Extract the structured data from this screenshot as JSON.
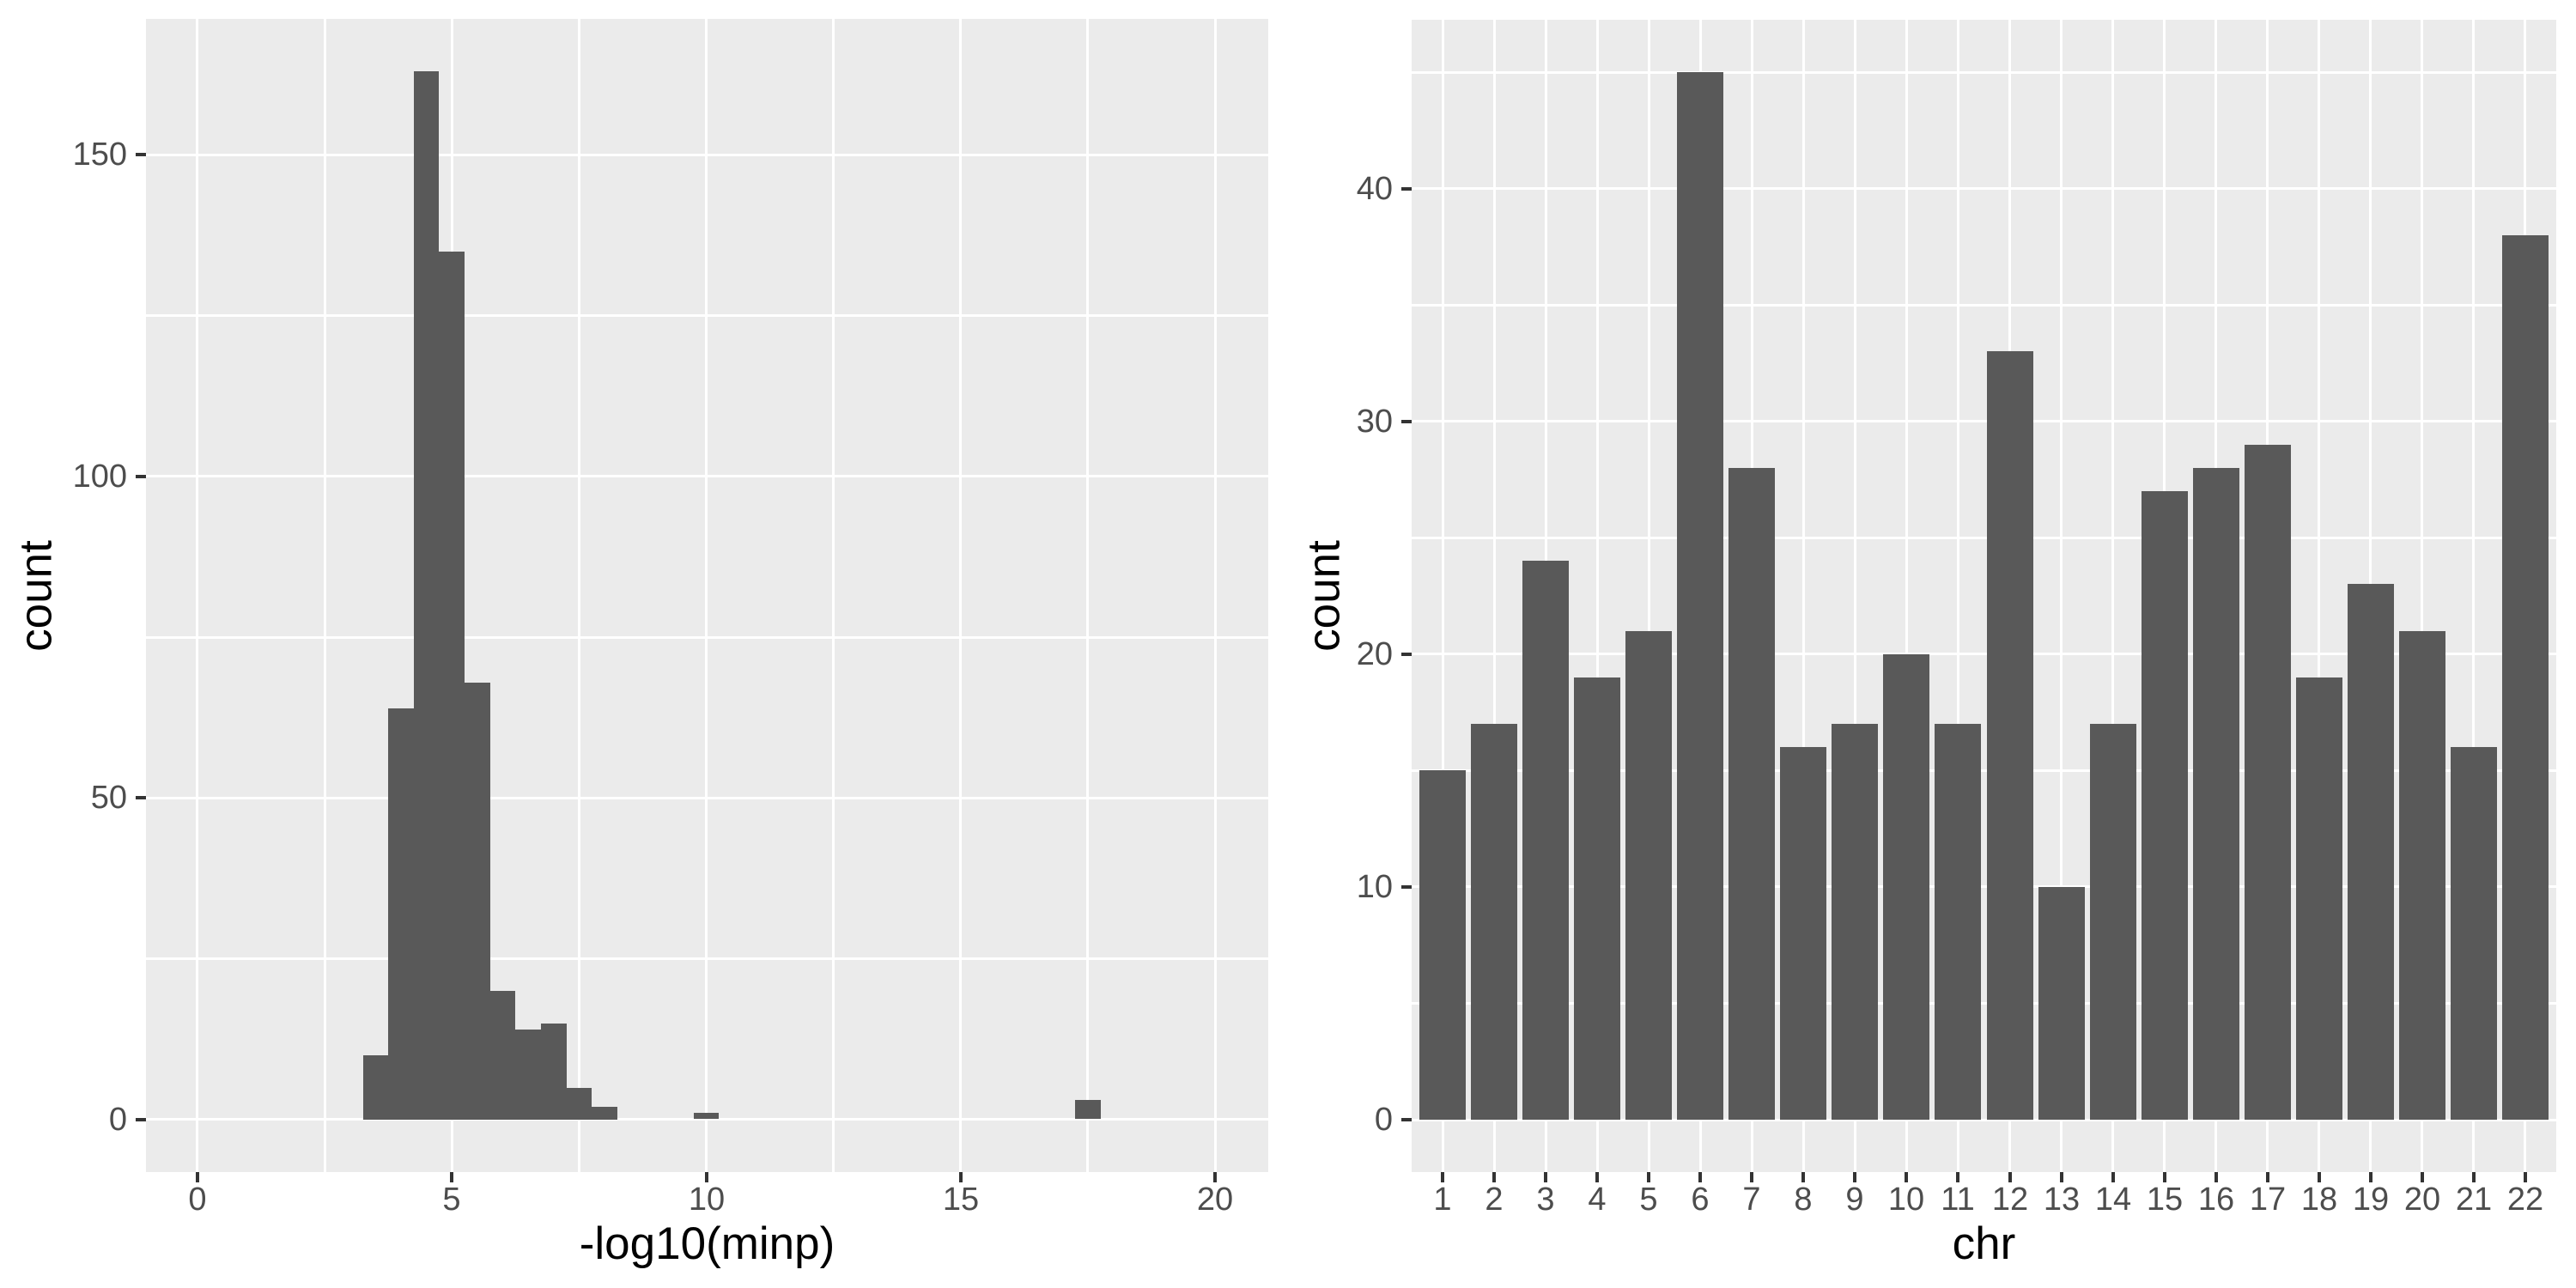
{
  "figure": {
    "background": "#FFFFFF",
    "description_left": "Histogram of -log10(minp) values",
    "description_right": "Bar chart of counts per chromosome"
  },
  "chart_data": [
    {
      "type": "bar",
      "subtype": "histogram",
      "title": "",
      "xlabel": "-log10(minp)",
      "ylabel": "count",
      "bin_width": 0.5,
      "bins": [
        {
          "x0": 3.25,
          "x1": 3.75,
          "count": 10
        },
        {
          "x0": 3.75,
          "x1": 4.25,
          "count": 64
        },
        {
          "x0": 4.25,
          "x1": 4.75,
          "count": 163
        },
        {
          "x0": 4.75,
          "x1": 5.25,
          "count": 135
        },
        {
          "x0": 5.25,
          "x1": 5.75,
          "count": 68
        },
        {
          "x0": 5.75,
          "x1": 6.25,
          "count": 20
        },
        {
          "x0": 6.25,
          "x1": 6.75,
          "count": 14
        },
        {
          "x0": 6.75,
          "x1": 7.25,
          "count": 15
        },
        {
          "x0": 7.25,
          "x1": 7.75,
          "count": 5
        },
        {
          "x0": 7.75,
          "x1": 8.25,
          "count": 2
        },
        {
          "x0": 9.75,
          "x1": 10.25,
          "count": 1
        },
        {
          "x0": 17.25,
          "x1": 17.75,
          "count": 3
        }
      ],
      "total_n": 500,
      "xlim": [
        -1.012,
        21.045
      ],
      "ylim": [
        -8.15,
        171.15
      ],
      "x_tick_values": [
        0,
        5,
        10,
        15,
        20
      ],
      "x_tick_labels": [
        "0",
        "5",
        "10",
        "15",
        "20"
      ],
      "x_minor": [
        2.5,
        7.5,
        12.5,
        17.5
      ],
      "y_tick_values": [
        0,
        50,
        100,
        150
      ],
      "y_tick_labels": [
        "0",
        "50",
        "100",
        "150"
      ],
      "y_minor": [
        25,
        75,
        125
      ],
      "grid": "on",
      "legend": "none",
      "colors": {
        "bar": "#595959",
        "panel": "#EBEBEB",
        "grid": "#FFFFFF",
        "tick": "#333333",
        "tick_label": "#4D4D4D",
        "title": "#000000"
      }
    },
    {
      "type": "bar",
      "subtype": "categorical",
      "title": "",
      "xlabel": "chr",
      "ylabel": "count",
      "categories": [
        "1",
        "2",
        "3",
        "4",
        "5",
        "6",
        "7",
        "8",
        "9",
        "10",
        "11",
        "12",
        "13",
        "14",
        "15",
        "16",
        "17",
        "18",
        "19",
        "20",
        "21",
        "22"
      ],
      "values": [
        15,
        17,
        24,
        19,
        21,
        45,
        28,
        16,
        17,
        20,
        17,
        33,
        10,
        17,
        27,
        28,
        29,
        19,
        23,
        21,
        16,
        38
      ],
      "total_n": 500,
      "bar_width": 0.9,
      "xlim": [
        0.4,
        22.6
      ],
      "ylim": [
        -2.25,
        47.25
      ],
      "y_tick_values": [
        0,
        10,
        20,
        30,
        40
      ],
      "y_tick_labels": [
        "0",
        "10",
        "20",
        "30",
        "40"
      ],
      "y_minor": [
        5,
        15,
        25,
        35,
        45
      ],
      "grid": "on",
      "legend": "none",
      "colors": {
        "bar": "#595959",
        "panel": "#EBEBEB",
        "grid": "#FFFFFF",
        "tick": "#333333",
        "tick_label": "#4D4D4D",
        "title": "#000000"
      }
    }
  ]
}
